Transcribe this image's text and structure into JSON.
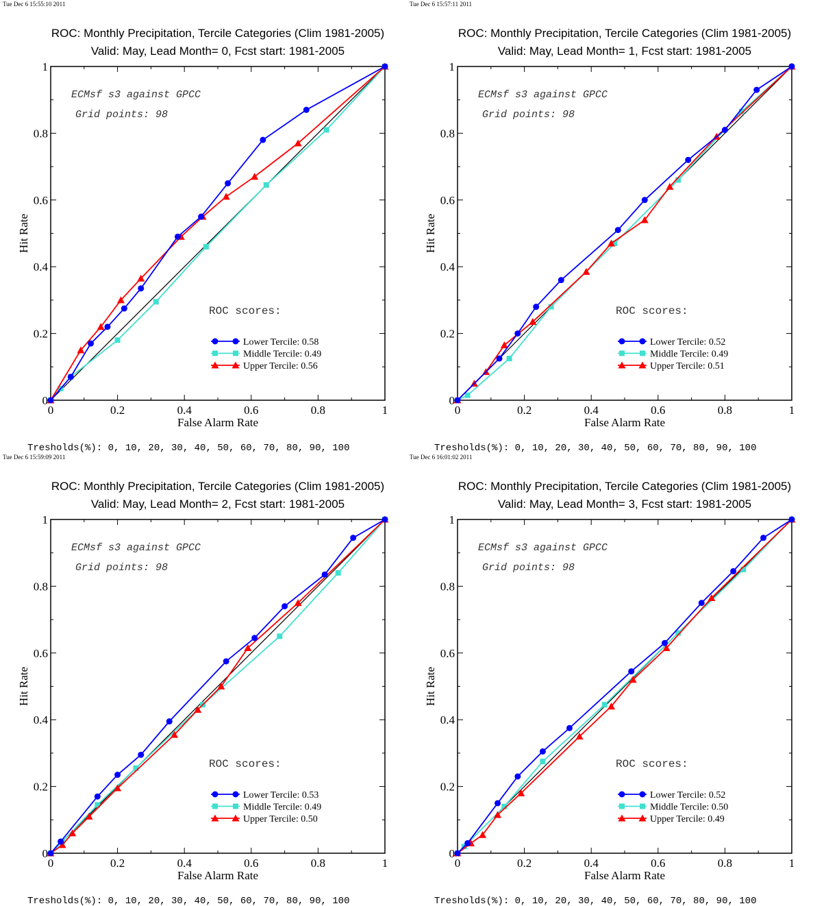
{
  "threshold_text": "Tresholds(%): 0, 10, 20, 30, 40, 50, 60, 70, 80, 90, 100",
  "roc_scores_label": "ROC scores:",
  "annotation_line1": "ECMsf s3 against GPCC",
  "annotation_line2": "Grid points:   98",
  "colors": {
    "lower": "#0000ff",
    "middle": "#40e0d0",
    "upper": "#ff0000",
    "diagonal": "#000000"
  },
  "chart_data": [
    {
      "type": "line",
      "timestamp": "Tue Dec  6 15:55:10 2011",
      "title": "ROC: Monthly Precipitation, Tercile Categories (Clim 1981-2005)",
      "subtitle": "Valid: May, Lead Month= 0, Fcst start: 1981-2005",
      "xlabel": "False Alarm Rate",
      "ylabel": "Hit Rate",
      "xlim": [
        0,
        1
      ],
      "ylim": [
        0,
        1
      ],
      "xticks": [
        "0",
        "0.2",
        "0.4",
        "0.6",
        "0.8",
        "1"
      ],
      "yticks": [
        "0",
        "0.2",
        "0.4",
        "0.6",
        "0.8",
        "1"
      ],
      "legend": [
        "Lower Tercile: 0.58",
        "Middle Tercile: 0.49",
        "Upper Tercile: 0.56"
      ],
      "series": [
        {
          "name": "Lower Tercile",
          "x": [
            0,
            0.06,
            0.12,
            0.17,
            0.22,
            0.27,
            0.38,
            0.45,
            0.53,
            0.635,
            0.765,
            1
          ],
          "y": [
            0,
            0.07,
            0.17,
            0.22,
            0.275,
            0.335,
            0.49,
            0.55,
            0.65,
            0.78,
            0.87,
            1
          ]
        },
        {
          "name": "Middle Tercile",
          "x": [
            0,
            0.03,
            0.06,
            0.2,
            0.315,
            0.465,
            0.645,
            0.825,
            1
          ],
          "y": [
            0,
            0.035,
            0.07,
            0.18,
            0.295,
            0.46,
            0.645,
            0.81,
            1
          ]
        },
        {
          "name": "Upper Tercile",
          "x": [
            0,
            0.09,
            0.15,
            0.21,
            0.27,
            0.39,
            0.455,
            0.525,
            0.61,
            0.74,
            1
          ],
          "y": [
            0,
            0.15,
            0.22,
            0.3,
            0.365,
            0.49,
            0.55,
            0.61,
            0.67,
            0.77,
            1
          ]
        }
      ]
    },
    {
      "type": "line",
      "timestamp": "Tue Dec  6 15:57:11 2011",
      "title": "ROC: Monthly Precipitation, Tercile Categories (Clim 1981-2005)",
      "subtitle": "Valid: May, Lead Month= 1, Fcst start: 1981-2005",
      "xlabel": "False Alarm Rate",
      "ylabel": "Hit Rate",
      "xlim": [
        0,
        1
      ],
      "ylim": [
        0,
        1
      ],
      "xticks": [
        "0",
        "0.2",
        "0.4",
        "0.6",
        "0.8",
        "1"
      ],
      "yticks": [
        "0",
        "0.2",
        "0.4",
        "0.6",
        "0.8",
        "1"
      ],
      "legend": [
        "Lower Tercile: 0.52",
        "Middle Tercile: 0.49",
        "Upper Tercile: 0.51"
      ],
      "series": [
        {
          "name": "Lower Tercile",
          "x": [
            0,
            0.125,
            0.18,
            0.235,
            0.31,
            0.48,
            0.56,
            0.69,
            0.8,
            0.895,
            1
          ],
          "y": [
            0,
            0.125,
            0.2,
            0.28,
            0.36,
            0.51,
            0.6,
            0.72,
            0.81,
            0.93,
            1
          ]
        },
        {
          "name": "Middle Tercile",
          "x": [
            0,
            0.03,
            0.155,
            0.28,
            0.47,
            0.66,
            0.85,
            1
          ],
          "y": [
            0,
            0.015,
            0.125,
            0.28,
            0.47,
            0.66,
            0.865,
            1
          ]
        },
        {
          "name": "Upper Tercile",
          "x": [
            0,
            0.05,
            0.085,
            0.14,
            0.225,
            0.385,
            0.46,
            0.56,
            0.635,
            0.775,
            1
          ],
          "y": [
            0,
            0.05,
            0.085,
            0.165,
            0.235,
            0.385,
            0.47,
            0.54,
            0.64,
            0.79,
            1
          ]
        }
      ]
    },
    {
      "type": "line",
      "timestamp": "Tue Dec  6 15:59:09 2011",
      "title": "ROC: Monthly Precipitation, Tercile Categories (Clim 1981-2005)",
      "subtitle": "Valid: May, Lead Month= 2, Fcst start: 1981-2005",
      "xlabel": "False Alarm Rate",
      "ylabel": "Hit Rate",
      "xlim": [
        0,
        1
      ],
      "ylim": [
        0,
        1
      ],
      "xticks": [
        "0",
        "0.2",
        "0.4",
        "0.6",
        "0.8",
        "1"
      ],
      "yticks": [
        "0",
        "0.2",
        "0.4",
        "0.6",
        "0.8",
        "1"
      ],
      "legend": [
        "Lower Tercile: 0.53",
        "Middle Tercile: 0.49",
        "Upper Tercile: 0.50"
      ],
      "series": [
        {
          "name": "Lower Tercile",
          "x": [
            0,
            0.03,
            0.14,
            0.2,
            0.27,
            0.355,
            0.525,
            0.61,
            0.7,
            0.82,
            0.905,
            1
          ],
          "y": [
            0,
            0.035,
            0.17,
            0.235,
            0.295,
            0.395,
            0.575,
            0.645,
            0.74,
            0.835,
            0.945,
            1
          ]
        },
        {
          "name": "Middle Tercile",
          "x": [
            0,
            0.035,
            0.14,
            0.255,
            0.455,
            0.685,
            0.86,
            1
          ],
          "y": [
            0,
            0.035,
            0.145,
            0.255,
            0.445,
            0.65,
            0.84,
            1
          ]
        },
        {
          "name": "Upper Tercile",
          "x": [
            0,
            0.035,
            0.065,
            0.115,
            0.2,
            0.37,
            0.44,
            0.51,
            0.59,
            0.74,
            1
          ],
          "y": [
            0,
            0.025,
            0.06,
            0.11,
            0.195,
            0.355,
            0.43,
            0.5,
            0.615,
            0.75,
            1
          ]
        }
      ]
    },
    {
      "type": "line",
      "timestamp": "Tue Dec  6 16:01:02 2011",
      "title": "ROC: Monthly Precipitation, Tercile Categories (Clim 1981-2005)",
      "subtitle": "Valid: May, Lead Month= 3, Fcst start: 1981-2005",
      "xlabel": "False Alarm Rate",
      "ylabel": "Hit Rate",
      "xlim": [
        0,
        1
      ],
      "ylim": [
        0,
        1
      ],
      "xticks": [
        "0",
        "0.2",
        "0.4",
        "0.6",
        "0.8",
        "1"
      ],
      "yticks": [
        "0",
        "0.2",
        "0.4",
        "0.6",
        "0.8",
        "1"
      ],
      "legend": [
        "Lower Tercile: 0.52",
        "Middle Tercile: 0.50",
        "Upper Tercile: 0.49"
      ],
      "series": [
        {
          "name": "Lower Tercile",
          "x": [
            0,
            0.03,
            0.12,
            0.18,
            0.255,
            0.335,
            0.52,
            0.62,
            0.73,
            0.825,
            0.915,
            1
          ],
          "y": [
            0,
            0.03,
            0.15,
            0.23,
            0.305,
            0.375,
            0.545,
            0.63,
            0.75,
            0.845,
            0.945,
            1
          ]
        },
        {
          "name": "Middle Tercile",
          "x": [
            0,
            0.02,
            0.14,
            0.255,
            0.44,
            0.66,
            0.855,
            1
          ],
          "y": [
            0,
            0.02,
            0.14,
            0.275,
            0.445,
            0.66,
            0.85,
            1
          ]
        },
        {
          "name": "Upper Tercile",
          "x": [
            0,
            0.04,
            0.075,
            0.12,
            0.19,
            0.365,
            0.46,
            0.525,
            0.625,
            0.76,
            1
          ],
          "y": [
            0,
            0.03,
            0.055,
            0.115,
            0.18,
            0.35,
            0.44,
            0.52,
            0.615,
            0.765,
            1
          ]
        }
      ]
    }
  ]
}
